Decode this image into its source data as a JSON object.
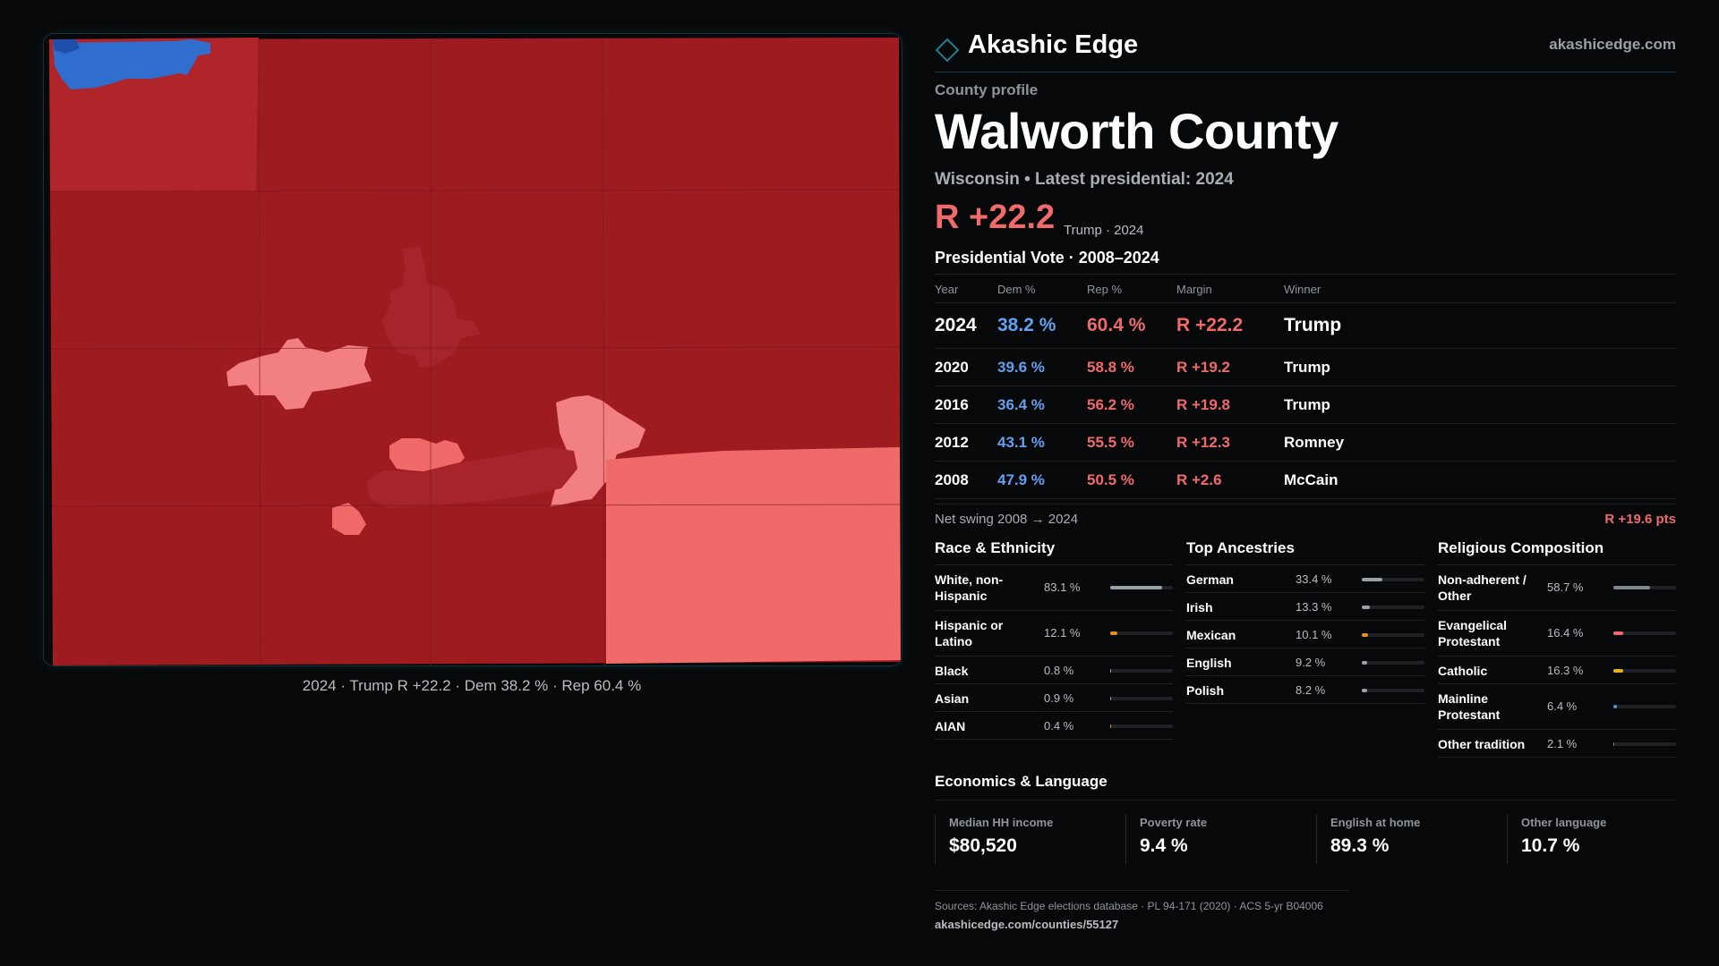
{
  "brand": {
    "name": "Akashic Edge",
    "url": "akashicedge.com"
  },
  "profile": {
    "kicker": "County profile",
    "title": "Walworth County",
    "subtitle": "Wisconsin • Latest presidential: 2024",
    "headline_margin": "R +22.2",
    "headline_note": "Trump · 2024"
  },
  "map": {
    "caption": "2024 · Trump R +22.2 · Dem 38.2 % · Rep 60.4 %",
    "colors": {
      "base": "#9e1b1f",
      "bright": "#b0252a",
      "mid": "#a6242a",
      "light": "#f06a6a",
      "lighter": "#f28080",
      "dem": "#2f6ecf"
    }
  },
  "vote_table": {
    "heading": "Presidential Vote · 2008–2024",
    "columns": [
      "Year",
      "Dem %",
      "Rep %",
      "Margin",
      "Winner"
    ],
    "rows": [
      {
        "year": "2024",
        "dem": "38.2 %",
        "rep": "60.4 %",
        "margin": "R +22.2",
        "winner": "Trump"
      },
      {
        "year": "2020",
        "dem": "39.6 %",
        "rep": "58.8 %",
        "margin": "R +19.2",
        "winner": "Trump"
      },
      {
        "year": "2016",
        "dem": "36.4 %",
        "rep": "56.2 %",
        "margin": "R +19.8",
        "winner": "Trump"
      },
      {
        "year": "2012",
        "dem": "43.1 %",
        "rep": "55.5 %",
        "margin": "R +12.3",
        "winner": "Romney"
      },
      {
        "year": "2008",
        "dem": "47.9 %",
        "rep": "50.5 %",
        "margin": "R +2.6",
        "winner": "McCain"
      }
    ]
  },
  "swing": {
    "label": "Net swing 2008 → 2024",
    "value": "R +19.6 pts"
  },
  "race": {
    "title": "Race & Ethnicity",
    "items": [
      {
        "label": "White, non-Hispanic",
        "value": "83.1 %",
        "pct": 83.1,
        "color": "#9aa0aa"
      },
      {
        "label": "Hispanic or Latino",
        "value": "12.1 %",
        "pct": 12.1,
        "color": "#e8901e"
      },
      {
        "label": "Black",
        "value": "0.8 %",
        "pct": 0.8,
        "color": "#9aa0aa"
      },
      {
        "label": "Asian",
        "value": "0.9 %",
        "pct": 0.9,
        "color": "#9aa0aa"
      },
      {
        "label": "AIAN",
        "value": "0.4 %",
        "pct": 0.4,
        "color": "#e8901e"
      }
    ]
  },
  "ancestry": {
    "title": "Top Ancestries",
    "items": [
      {
        "label": "German",
        "value": "33.4 %",
        "pct": 33.4,
        "color": "#9aa0aa"
      },
      {
        "label": "Irish",
        "value": "13.3 %",
        "pct": 13.3,
        "color": "#9aa0aa"
      },
      {
        "label": "Mexican",
        "value": "10.1 %",
        "pct": 10.1,
        "color": "#e8901e"
      },
      {
        "label": "English",
        "value": "9.2 %",
        "pct": 9.2,
        "color": "#9aa0aa"
      },
      {
        "label": "Polish",
        "value": "8.2 %",
        "pct": 8.2,
        "color": "#9aa0aa"
      }
    ]
  },
  "religion": {
    "title": "Religious Composition",
    "items": [
      {
        "label": "Non-adherent / Other",
        "value": "58.7 %",
        "pct": 58.7,
        "color": "#7f8690"
      },
      {
        "label": "Evangelical Protestant",
        "value": "16.4 %",
        "pct": 16.4,
        "color": "#f06a6a"
      },
      {
        "label": "Catholic",
        "value": "16.3 %",
        "pct": 16.3,
        "color": "#e8b020"
      },
      {
        "label": "Mainline Protestant",
        "value": "6.4 %",
        "pct": 6.4,
        "color": "#5a90e0"
      },
      {
        "label": "Other tradition",
        "value": "2.1 %",
        "pct": 2.1,
        "color": "#7f8690"
      }
    ]
  },
  "economics": {
    "title": "Economics & Language",
    "items": [
      {
        "label": "Median HH income",
        "value": "$80,520"
      },
      {
        "label": "Poverty rate",
        "value": "9.4 %"
      },
      {
        "label": "English at home",
        "value": "89.3 %"
      },
      {
        "label": "Other language",
        "value": "10.7 %"
      }
    ]
  },
  "footer": {
    "sources": "Sources: Akashic Edge elections database · PL 94-171 (2020) · ACS 5-yr B04006",
    "url": "akashicedge.com/counties/55127"
  }
}
